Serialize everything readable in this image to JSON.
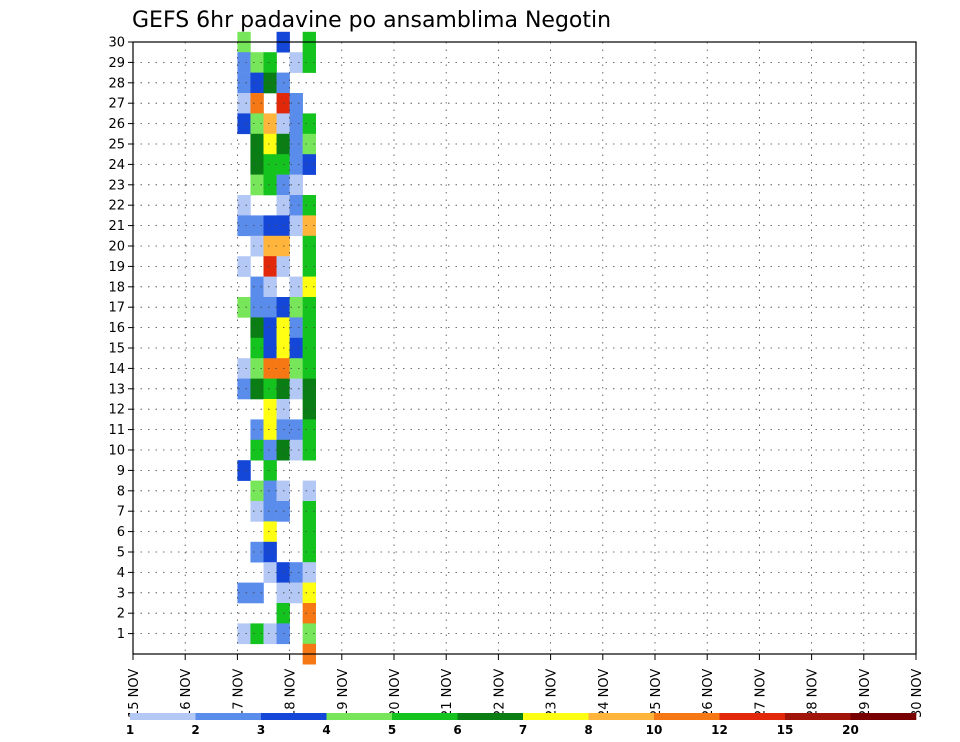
{
  "chart_data": {
    "type": "heatmap",
    "title": "GEFS 6hr padavine po ansamblima Negotin",
    "xlabel": "",
    "ylabel": "",
    "x_ticks": [
      "15 NOV",
      "16 NOV",
      "17 NOV",
      "18 NOV",
      "19 NOV",
      "20 NOV",
      "21 NOV",
      "22 NOV",
      "23 NOV",
      "24 NOV",
      "25 NOV",
      "26 NOV",
      "27 NOV",
      "28 NOV",
      "29 NOV",
      "30 NOV"
    ],
    "y_ticks": [
      "1",
      "2",
      "3",
      "4",
      "5",
      "6",
      "7",
      "8",
      "9",
      "10",
      "11",
      "12",
      "13",
      "14",
      "15",
      "16",
      "17",
      "18",
      "19",
      "20",
      "21",
      "22",
      "23",
      "24",
      "25",
      "26",
      "27",
      "28",
      "29",
      "30"
    ],
    "ylim": [
      0,
      30
    ],
    "grid": true,
    "colorbar": {
      "labels": [
        "1",
        "2",
        "3",
        "4",
        "5",
        "6",
        "7",
        "8",
        "10",
        "12",
        "15",
        "20"
      ],
      "colors": [
        "#b4c8f5",
        "#5a8cec",
        "#1446d8",
        "#78e65a",
        "#14c31e",
        "#0a7d14",
        "#ffff14",
        "#ffb43c",
        "#f57814",
        "#e1280a",
        "#a0140a",
        "#780000"
      ]
    },
    "cells": [
      {
        "m": 30,
        "s": 0,
        "v": 4
      },
      {
        "m": 29,
        "s": 0,
        "v": 2
      },
      {
        "m": 28,
        "s": 0,
        "v": 2
      },
      {
        "m": 27,
        "s": 0,
        "v": 1
      },
      {
        "m": 26,
        "s": 0,
        "v": 3
      },
      {
        "m": 22,
        "s": 0,
        "v": 1
      },
      {
        "m": 21,
        "s": 0,
        "v": 2
      },
      {
        "m": 19,
        "s": 0,
        "v": 1
      },
      {
        "m": 17,
        "s": 0,
        "v": 4
      },
      {
        "m": 14,
        "s": 0,
        "v": 1
      },
      {
        "m": 13,
        "s": 0,
        "v": 2
      },
      {
        "m": 9,
        "s": 0,
        "v": 3
      },
      {
        "m": 3,
        "s": 0,
        "v": 2
      },
      {
        "m": 1,
        "s": 0,
        "v": 1
      },
      {
        "m": 29,
        "s": 1,
        "v": 4
      },
      {
        "m": 28,
        "s": 1,
        "v": 3
      },
      {
        "m": 27,
        "s": 1,
        "v": 10
      },
      {
        "m": 26,
        "s": 1,
        "v": 4
      },
      {
        "m": 25,
        "s": 1,
        "v": 6
      },
      {
        "m": 24,
        "s": 1,
        "v": 6
      },
      {
        "m": 23,
        "s": 1,
        "v": 4
      },
      {
        "m": 21,
        "s": 1,
        "v": 2
      },
      {
        "m": 20,
        "s": 1,
        "v": 1
      },
      {
        "m": 18,
        "s": 1,
        "v": 2
      },
      {
        "m": 17,
        "s": 1,
        "v": 2
      },
      {
        "m": 16,
        "s": 1,
        "v": 6
      },
      {
        "m": 15,
        "s": 1,
        "v": 5
      },
      {
        "m": 14,
        "s": 1,
        "v": 4
      },
      {
        "m": 13,
        "s": 1,
        "v": 6
      },
      {
        "m": 11,
        "s": 1,
        "v": 2
      },
      {
        "m": 10,
        "s": 1,
        "v": 5
      },
      {
        "m": 8,
        "s": 1,
        "v": 4
      },
      {
        "m": 7,
        "s": 1,
        "v": 1
      },
      {
        "m": 5,
        "s": 1,
        "v": 2
      },
      {
        "m": 3,
        "s": 1,
        "v": 2
      },
      {
        "m": 1,
        "s": 1,
        "v": 5
      },
      {
        "m": 29,
        "s": 2,
        "v": 5
      },
      {
        "m": 28,
        "s": 2,
        "v": 6
      },
      {
        "m": 26,
        "s": 2,
        "v": 9
      },
      {
        "m": 25,
        "s": 2,
        "v": 7
      },
      {
        "m": 24,
        "s": 2,
        "v": 5
      },
      {
        "m": 23,
        "s": 2,
        "v": 5
      },
      {
        "m": 21,
        "s": 2,
        "v": 3
      },
      {
        "m": 20,
        "s": 2,
        "v": 8
      },
      {
        "m": 19,
        "s": 2,
        "v": 13
      },
      {
        "m": 18,
        "s": 2,
        "v": 1
      },
      {
        "m": 17,
        "s": 2,
        "v": 2
      },
      {
        "m": 16,
        "s": 2,
        "v": 3
      },
      {
        "m": 15,
        "s": 2,
        "v": 3
      },
      {
        "m": 14,
        "s": 2,
        "v": 10
      },
      {
        "m": 13,
        "s": 2,
        "v": 5
      },
      {
        "m": 12,
        "s": 2,
        "v": 7
      },
      {
        "m": 11,
        "s": 2,
        "v": 7
      },
      {
        "m": 10,
        "s": 2,
        "v": 2
      },
      {
        "m": 9,
        "s": 2,
        "v": 5
      },
      {
        "m": 8,
        "s": 2,
        "v": 2
      },
      {
        "m": 7,
        "s": 2,
        "v": 2
      },
      {
        "m": 6,
        "s": 2,
        "v": 7
      },
      {
        "m": 5,
        "s": 2,
        "v": 3
      },
      {
        "m": 4,
        "s": 2,
        "v": 1
      },
      {
        "m": 1,
        "s": 2,
        "v": 1
      },
      {
        "m": 30,
        "s": 3,
        "v": 3
      },
      {
        "m": 28,
        "s": 3,
        "v": 2
      },
      {
        "m": 27,
        "s": 3,
        "v": 13
      },
      {
        "m": 26,
        "s": 3,
        "v": 1
      },
      {
        "m": 25,
        "s": 3,
        "v": 6
      },
      {
        "m": 24,
        "s": 3,
        "v": 5
      },
      {
        "m": 23,
        "s": 3,
        "v": 2
      },
      {
        "m": 22,
        "s": 3,
        "v": 1
      },
      {
        "m": 21,
        "s": 3,
        "v": 3
      },
      {
        "m": 20,
        "s": 3,
        "v": 8
      },
      {
        "m": 19,
        "s": 3,
        "v": 1
      },
      {
        "m": 17,
        "s": 3,
        "v": 3
      },
      {
        "m": 16,
        "s": 3,
        "v": 7
      },
      {
        "m": 15,
        "s": 3,
        "v": 7
      },
      {
        "m": 14,
        "s": 3,
        "v": 11
      },
      {
        "m": 13,
        "s": 3,
        "v": 6
      },
      {
        "m": 12,
        "s": 3,
        "v": 1
      },
      {
        "m": 11,
        "s": 3,
        "v": 2
      },
      {
        "m": 10,
        "s": 3,
        "v": 6
      },
      {
        "m": 8,
        "s": 3,
        "v": 1
      },
      {
        "m": 7,
        "s": 3,
        "v": 2
      },
      {
        "m": 4,
        "s": 3,
        "v": 3
      },
      {
        "m": 3,
        "s": 3,
        "v": 1
      },
      {
        "m": 2,
        "s": 3,
        "v": 5
      },
      {
        "m": 1,
        "s": 3,
        "v": 2
      },
      {
        "m": 29,
        "s": 4,
        "v": 1
      },
      {
        "m": 27,
        "s": 4,
        "v": 2
      },
      {
        "m": 26,
        "s": 4,
        "v": 2
      },
      {
        "m": 25,
        "s": 4,
        "v": 2
      },
      {
        "m": 24,
        "s": 4,
        "v": 2
      },
      {
        "m": 23,
        "s": 4,
        "v": 1
      },
      {
        "m": 22,
        "s": 4,
        "v": 2
      },
      {
        "m": 21,
        "s": 4,
        "v": 1
      },
      {
        "m": 18,
        "s": 4,
        "v": 1
      },
      {
        "m": 17,
        "s": 4,
        "v": 4
      },
      {
        "m": 16,
        "s": 4,
        "v": 2
      },
      {
        "m": 15,
        "s": 4,
        "v": 3
      },
      {
        "m": 14,
        "s": 4,
        "v": 4
      },
      {
        "m": 13,
        "s": 4,
        "v": 1
      },
      {
        "m": 11,
        "s": 4,
        "v": 2
      },
      {
        "m": 10,
        "s": 4,
        "v": 1
      },
      {
        "m": 4,
        "s": 4,
        "v": 2
      },
      {
        "m": 3,
        "s": 4,
        "v": 1
      },
      {
        "m": 30,
        "s": 5,
        "v": 5
      },
      {
        "m": 29,
        "s": 5,
        "v": 5
      },
      {
        "m": 26,
        "s": 5,
        "v": 5
      },
      {
        "m": 25,
        "s": 5,
        "v": 4
      },
      {
        "m": 24,
        "s": 5,
        "v": 3
      },
      {
        "m": 22,
        "s": 5,
        "v": 5
      },
      {
        "m": 21,
        "s": 5,
        "v": 8
      },
      {
        "m": 20,
        "s": 5,
        "v": 5
      },
      {
        "m": 19,
        "s": 5,
        "v": 5
      },
      {
        "m": 18,
        "s": 5,
        "v": 7
      },
      {
        "m": 17,
        "s": 5,
        "v": 5
      },
      {
        "m": 16,
        "s": 5,
        "v": 5
      },
      {
        "m": 15,
        "s": 5,
        "v": 5
      },
      {
        "m": 14,
        "s": 5,
        "v": 5
      },
      {
        "m": 13,
        "s": 5,
        "v": 6
      },
      {
        "m": 12,
        "s": 5,
        "v": 6
      },
      {
        "m": 11,
        "s": 5,
        "v": 5
      },
      {
        "m": 10,
        "s": 5,
        "v": 5
      },
      {
        "m": 8,
        "s": 5,
        "v": 1
      },
      {
        "m": 7,
        "s": 5,
        "v": 5
      },
      {
        "m": 6,
        "s": 5,
        "v": 5
      },
      {
        "m": 5,
        "s": 5,
        "v": 5
      },
      {
        "m": 4,
        "s": 5,
        "v": 1
      },
      {
        "m": 3,
        "s": 5,
        "v": 7
      },
      {
        "m": 2,
        "s": 5,
        "v": 10
      },
      {
        "m": 1,
        "s": 5,
        "v": 4
      },
      {
        "m": 0,
        "s": 5,
        "v": 10
      }
    ],
    "cells_note": "m = ensemble member (y), s = six-hour step index within NOV 15-30 panel, v = 6h precipitation class value"
  }
}
